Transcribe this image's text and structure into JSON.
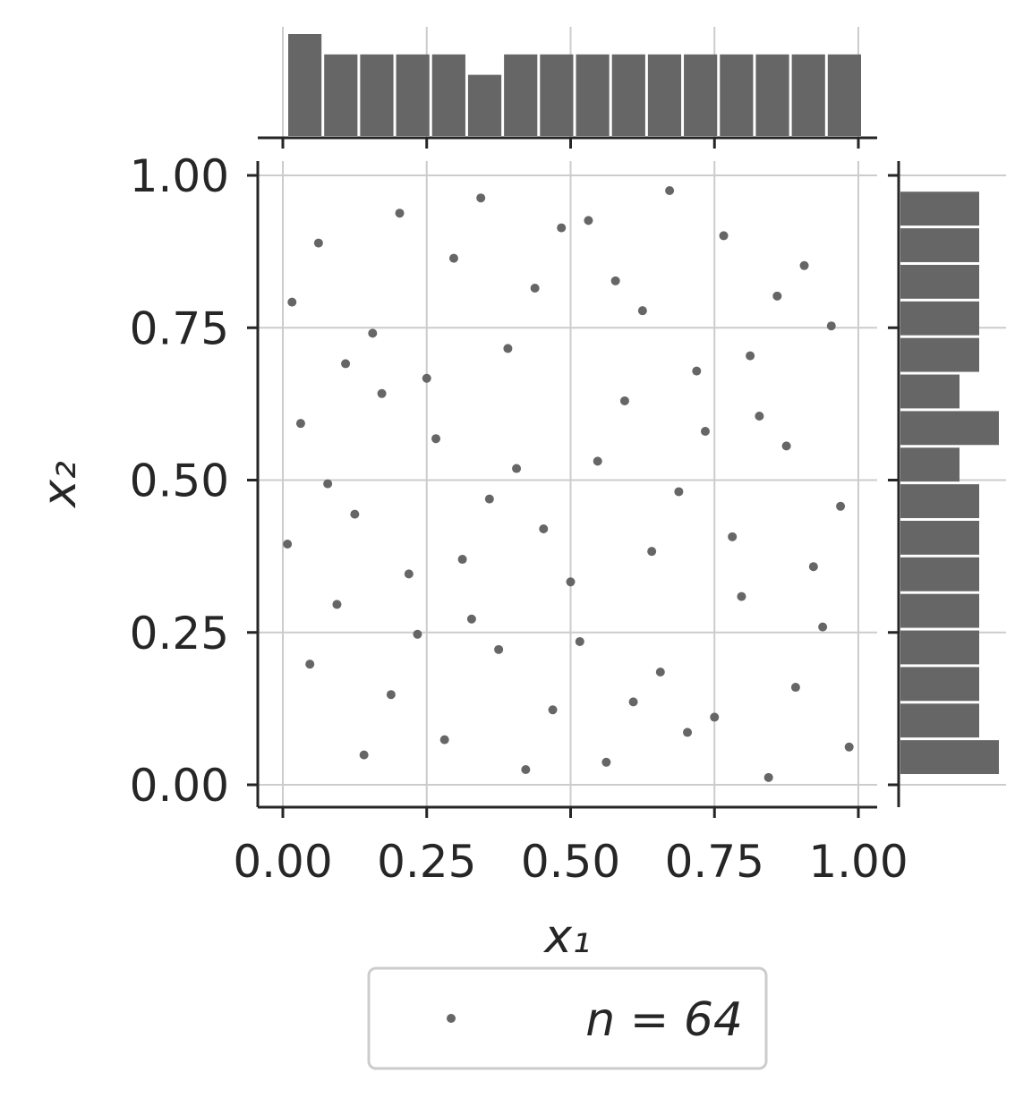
{
  "chart_data": {
    "type": "scatter",
    "kind": "joint-plot",
    "xlabel": "x₁",
    "ylabel": "x₂",
    "xlim": [
      -0.04,
      1.03
    ],
    "ylim": [
      -0.04,
      1.02
    ],
    "grid": true,
    "x_ticks": [
      0.0,
      0.25,
      0.5,
      0.75,
      1.0
    ],
    "y_ticks": [
      0.0,
      0.25,
      0.5,
      0.75,
      1.0
    ],
    "x_tick_labels": [
      "0.00",
      "0.25",
      "0.50",
      "0.75",
      "1.00"
    ],
    "y_tick_labels": [
      "0.00",
      "0.25",
      "0.50",
      "0.75",
      "1.00"
    ],
    "marker_color": "#666666",
    "series": [
      {
        "name": "n = 64",
        "points": [
          [
            0.008,
            0.395
          ],
          [
            0.016,
            0.792
          ],
          [
            0.031,
            0.593
          ],
          [
            0.047,
            0.198
          ],
          [
            0.062,
            0.889
          ],
          [
            0.078,
            0.494
          ],
          [
            0.094,
            0.296
          ],
          [
            0.109,
            0.691
          ],
          [
            0.125,
            0.444
          ],
          [
            0.141,
            0.049
          ],
          [
            0.156,
            0.741
          ],
          [
            0.172,
            0.642
          ],
          [
            0.188,
            0.148
          ],
          [
            0.203,
            0.938
          ],
          [
            0.219,
            0.346
          ],
          [
            0.234,
            0.247
          ],
          [
            0.25,
            0.667
          ],
          [
            0.266,
            0.568
          ],
          [
            0.281,
            0.074
          ],
          [
            0.297,
            0.864
          ],
          [
            0.312,
            0.37
          ],
          [
            0.328,
            0.272
          ],
          [
            0.344,
            0.963
          ],
          [
            0.359,
            0.469
          ],
          [
            0.375,
            0.222
          ],
          [
            0.391,
            0.716
          ],
          [
            0.406,
            0.519
          ],
          [
            0.422,
            0.025
          ],
          [
            0.438,
            0.815
          ],
          [
            0.453,
            0.42
          ],
          [
            0.469,
            0.123
          ],
          [
            0.484,
            0.914
          ],
          [
            0.5,
            0.333
          ],
          [
            0.516,
            0.235
          ],
          [
            0.531,
            0.926
          ],
          [
            0.547,
            0.531
          ],
          [
            0.562,
            0.037
          ],
          [
            0.578,
            0.827
          ],
          [
            0.594,
            0.63
          ],
          [
            0.609,
            0.136
          ],
          [
            0.625,
            0.778
          ],
          [
            0.641,
            0.383
          ],
          [
            0.656,
            0.185
          ],
          [
            0.672,
            0.975
          ],
          [
            0.688,
            0.481
          ],
          [
            0.703,
            0.086
          ],
          [
            0.719,
            0.679
          ],
          [
            0.734,
            0.58
          ],
          [
            0.75,
            0.111
          ],
          [
            0.766,
            0.901
          ],
          [
            0.781,
            0.407
          ],
          [
            0.797,
            0.309
          ],
          [
            0.812,
            0.704
          ],
          [
            0.828,
            0.605
          ],
          [
            0.844,
            0.012
          ],
          [
            0.859,
            0.802
          ],
          [
            0.875,
            0.556
          ],
          [
            0.891,
            0.16
          ],
          [
            0.906,
            0.852
          ],
          [
            0.922,
            0.358
          ],
          [
            0.938,
            0.259
          ],
          [
            0.953,
            0.753
          ],
          [
            0.969,
            0.457
          ],
          [
            0.984,
            0.062
          ]
        ]
      }
    ],
    "top_histogram": {
      "bins": 16,
      "range": [
        0.0,
        1.0
      ],
      "counts": [
        5,
        4,
        4,
        4,
        4,
        3,
        4,
        4,
        4,
        4,
        4,
        4,
        4,
        4,
        4,
        4
      ],
      "max_count": 5
    },
    "right_histogram": {
      "bins": 16,
      "range": [
        0.0,
        1.0
      ],
      "counts": [
        5,
        4,
        4,
        4,
        4,
        4,
        4,
        4,
        3,
        5,
        3,
        4,
        4,
        4,
        4,
        4
      ],
      "max_count": 5
    },
    "legend": {
      "label": "n = 64",
      "location": "lower center"
    }
  }
}
